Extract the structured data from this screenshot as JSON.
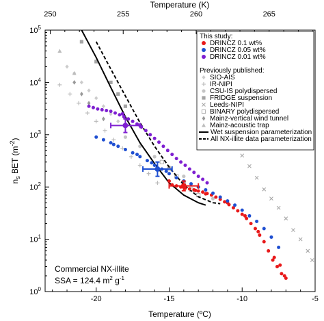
{
  "chart_data": {
    "type": "scatter",
    "title": "",
    "xlabel": "Temperature (ºC)",
    "x2label": "Temperature (K)",
    "ylabel_main": "n",
    "ylabel_sub": "s",
    "ylabel_rest": " BET (m",
    "ylabel_sup": "-2",
    "ylabel_end": ")",
    "xlim": [
      -23.5,
      -5
    ],
    "x2lim": [
      249.65,
      268.15
    ],
    "ylim": [
      1,
      100000
    ],
    "y_scale": "log",
    "x_ticks": [
      -20,
      -15,
      -10,
      -5
    ],
    "x_tick_labels": [
      "-20",
      "-15",
      "-10",
      "-5"
    ],
    "x2_ticks": [
      250,
      255,
      260,
      265
    ],
    "x2_tick_labels": [
      "250",
      "255",
      "260",
      "265"
    ],
    "y_ticks": [
      1,
      10,
      100,
      1000,
      10000,
      100000
    ],
    "y_tick_bases": [
      "10",
      "10",
      "10",
      "10",
      "10",
      "10"
    ],
    "y_tick_exps": [
      "0",
      "1",
      "2",
      "3",
      "4",
      "5"
    ],
    "grid": false,
    "legend_position": "top-right",
    "legend_header_study": "This study:",
    "legend_header_published": "Previously published:",
    "annotation_line1": "Commercial NX-illite",
    "annotation_line2_prefix": "SSA = 124.4 m",
    "annotation_line2_sup1": "2",
    "annotation_line2_mid": " g",
    "annotation_line2_sup2": "-1",
    "study_series": [
      {
        "name": "DRINCZ 0.1 wt%",
        "color": "#e8191a",
        "x": [
          -14.8,
          -14.5,
          -14.2,
          -13.9,
          -13.6,
          -13.3,
          -13.0,
          -12.7,
          -12.4,
          -12.1,
          -11.8,
          -11.5,
          -11.2,
          -10.9,
          -10.6,
          -10.3,
          -10.0,
          -9.7,
          -9.4,
          -9.1,
          -8.8,
          -8.5,
          -8.2,
          -7.9,
          -7.6,
          -7.3,
          -7.0,
          -15.0,
          -14.0,
          -13.2,
          -12.5,
          -11.0,
          -9.8,
          -8.9,
          -7.8,
          -7.4,
          -7.1
        ],
        "y": [
          110,
          105,
          100,
          95,
          92,
          88,
          84,
          80,
          75,
          70,
          64,
          58,
          52,
          46,
          40,
          35,
          30,
          25,
          20,
          16,
          12,
          9,
          6,
          4,
          3,
          2.2,
          1.8,
          130,
          98,
          86,
          74,
          50,
          28,
          14,
          4.5,
          3.2,
          2.0
        ]
      },
      {
        "name": "DRINCZ 0.05 wt%",
        "color": "#1f4fd1",
        "x": [
          -20.0,
          -19.5,
          -19.0,
          -18.5,
          -18.0,
          -17.5,
          -17.0,
          -16.5,
          -16.0,
          -15.5,
          -15.0,
          -14.5,
          -14.0,
          -13.5,
          -13.0,
          -12.5,
          -12.0,
          -11.5,
          -11.0,
          -10.5,
          -10.0,
          -9.5,
          -9.0,
          -8.5,
          -8.0,
          -7.5,
          -18.8,
          -17.2,
          -16.2,
          -15.2
        ],
        "y": [
          900,
          800,
          700,
          600,
          520,
          450,
          380,
          320,
          260,
          220,
          180,
          150,
          130,
          115,
          100,
          88,
          76,
          64,
          54,
          45,
          36,
          28,
          22,
          16,
          11,
          7,
          650,
          420,
          290,
          200
        ]
      },
      {
        "name": "DRINCZ 0.01 wt%",
        "color": "#7e1fd1",
        "x": [
          -20.5,
          -20.2,
          -19.9,
          -19.6,
          -19.3,
          -19.0,
          -18.7,
          -18.4,
          -18.1,
          -17.8,
          -17.5,
          -17.2,
          -16.9,
          -16.6,
          -16.3,
          -16.0,
          -15.7,
          -15.4,
          -15.1,
          -14.8,
          -14.5,
          -14.2,
          -13.9,
          -13.6,
          -13.3,
          -13.0,
          -12.7,
          -12.4,
          -18.2,
          -17.0
        ],
        "y": [
          3500,
          3300,
          3100,
          3000,
          2900,
          2800,
          2600,
          2400,
          2200,
          2000,
          1800,
          1600,
          1400,
          1200,
          1000,
          850,
          720,
          600,
          500,
          420,
          350,
          300,
          260,
          220,
          190,
          160,
          140,
          120,
          2500,
          1500
        ]
      }
    ],
    "published_series": [
      {
        "name": "SIO-AIS",
        "marker": "diamond-light",
        "x": [
          -22.0,
          -21.5,
          -21.0,
          -20.5,
          -20.0,
          -19.5,
          -19.0,
          -18.5
        ],
        "y": [
          20000,
          15000,
          10000,
          7000,
          5000,
          3500,
          2500,
          1800
        ]
      },
      {
        "name": "IR-NIPI",
        "marker": "plus",
        "x": [
          -22.5,
          -21.8,
          -21.2,
          -20.6,
          -20.0,
          -19.4,
          -18.8,
          -18.2,
          -17.6,
          -17.0,
          -16.4,
          -15.8
        ],
        "y": [
          9000,
          6000,
          4000,
          2600,
          1800,
          1200,
          800,
          550,
          380,
          260,
          180,
          120
        ]
      },
      {
        "name": "CSU-IS polydispersed",
        "marker": "circle-light",
        "x": [
          -18.0,
          -17.0,
          -16.0,
          -15.0,
          -14.0,
          -13.0,
          -12.0
        ],
        "y": [
          900,
          600,
          380,
          240,
          160,
          100,
          60
        ]
      },
      {
        "name": "FRIDGE suspension",
        "marker": "square",
        "x": [
          -21.0,
          -20.0,
          -19.0,
          -18.5,
          -18.0
        ],
        "y": [
          60000,
          25000,
          10000,
          6000,
          3500
        ]
      },
      {
        "name": "Leeds-NIPI",
        "marker": "x",
        "x": [
          -11.0,
          -10.5,
          -10.0,
          -9.5,
          -9.0,
          -8.5,
          -8.0,
          -7.5,
          -7.0,
          -6.5,
          -6.0,
          -5.5,
          -5.2
        ],
        "y": [
          1000,
          600,
          400,
          250,
          150,
          90,
          60,
          40,
          25,
          15,
          10,
          6,
          4
        ]
      },
      {
        "name": "BINARY polydispersed",
        "marker": "square-open",
        "x": [
          -15.5,
          -15.0,
          -14.5,
          -14.0,
          -13.5,
          -13.0
        ],
        "y": [
          300,
          220,
          160,
          120,
          90,
          70
        ]
      },
      {
        "name": "Mainz-vertical wind tunnel",
        "marker": "diamond",
        "x": [
          -21.5,
          -21.0,
          -20.5,
          -19.5
        ],
        "y": [
          10000,
          6000,
          4000,
          2000
        ]
      },
      {
        "name": "Mainz-acoustic trap",
        "marker": "triangle",
        "x": [
          -22.5,
          -21.5
        ],
        "y": [
          40000,
          15000
        ]
      }
    ],
    "parameterizations": [
      {
        "name": "Wet suspension parameterization",
        "style": "solid",
        "x": [
          -21.0,
          -20.0,
          -19.0,
          -18.0,
          -17.0,
          -16.0,
          -15.0,
          -14.0,
          -13.0,
          -12.5
        ],
        "y": [
          100000,
          30000,
          8000,
          2200,
          700,
          280,
          120,
          70,
          50,
          45
        ]
      },
      {
        "name": "All NX-illite data parameterization",
        "style": "dashed",
        "x": [
          -20.0,
          -19.0,
          -18.0,
          -17.0,
          -16.0,
          -15.0,
          -14.0,
          -13.0,
          -12.0,
          -11.5
        ],
        "y": [
          60000,
          18000,
          5500,
          1700,
          600,
          240,
          110,
          65,
          50,
          48
        ]
      }
    ],
    "error_bars": [
      {
        "color": "#7e1fd1",
        "x": -18.0,
        "y": 1500,
        "xerr": 1.0,
        "yerr_low": 1100,
        "yerr_high": 2000
      },
      {
        "color": "#1f4fd1",
        "x": -15.8,
        "y": 220,
        "xerr": 1.0,
        "yerr_low": 160,
        "yerr_high": 300
      },
      {
        "color": "#e8191a",
        "x": -14.0,
        "y": 105,
        "xerr": 1.0,
        "yerr_low": 85,
        "yerr_high": 130
      }
    ]
  }
}
